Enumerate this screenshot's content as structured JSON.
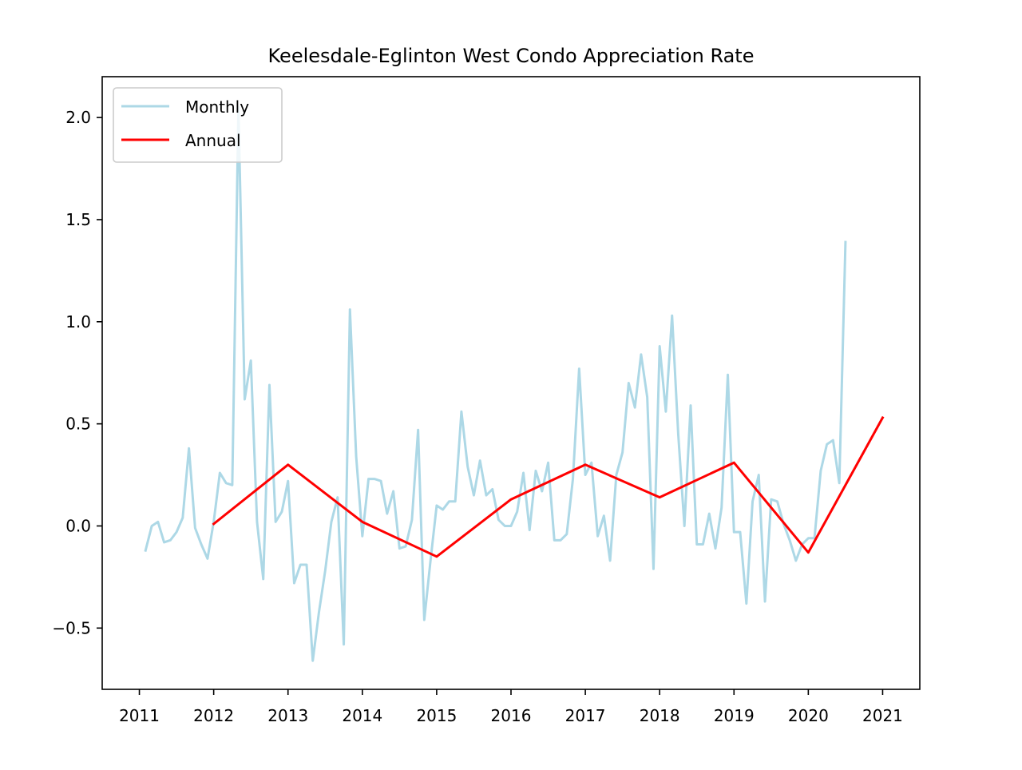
{
  "chart_data": {
    "type": "line",
    "title": "Keelesdale-Eglinton West Condo Appreciation Rate",
    "xlabel": "",
    "ylabel": "",
    "xlim": [
      2010.5,
      2021.5
    ],
    "ylim": [
      -0.8,
      2.2
    ],
    "x_ticks": [
      2011,
      2012,
      2013,
      2014,
      2015,
      2016,
      2017,
      2018,
      2019,
      2020,
      2021
    ],
    "x_tick_labels": [
      "2011",
      "2012",
      "2013",
      "2014",
      "2015",
      "2016",
      "2017",
      "2018",
      "2019",
      "2020",
      "2021"
    ],
    "y_ticks": [
      -0.5,
      0.0,
      0.5,
      1.0,
      1.5,
      2.0
    ],
    "y_tick_labels": [
      "−0.5",
      "0.0",
      "0.5",
      "1.0",
      "1.5",
      "2.0"
    ],
    "grid": false,
    "legend_position": "top-left",
    "series": [
      {
        "name": "Monthly",
        "color": "#add8e6",
        "x": [
          2011.083,
          2011.167,
          2011.25,
          2011.333,
          2011.417,
          2011.5,
          2011.583,
          2011.667,
          2011.75,
          2011.833,
          2011.917,
          2012.0,
          2012.083,
          2012.167,
          2012.25,
          2012.333,
          2012.417,
          2012.5,
          2012.583,
          2012.667,
          2012.75,
          2012.833,
          2012.917,
          2013.0,
          2013.083,
          2013.167,
          2013.25,
          2013.333,
          2013.417,
          2013.5,
          2013.583,
          2013.667,
          2013.75,
          2013.833,
          2013.917,
          2014.0,
          2014.083,
          2014.167,
          2014.25,
          2014.333,
          2014.417,
          2014.5,
          2014.583,
          2014.667,
          2014.75,
          2014.833,
          2014.917,
          2015.0,
          2015.083,
          2015.167,
          2015.25,
          2015.333,
          2015.417,
          2015.5,
          2015.583,
          2015.667,
          2015.75,
          2015.833,
          2015.917,
          2016.0,
          2016.083,
          2016.167,
          2016.25,
          2016.333,
          2016.417,
          2016.5,
          2016.583,
          2016.667,
          2016.75,
          2016.833,
          2016.917,
          2017.0,
          2017.083,
          2017.167,
          2017.25,
          2017.333,
          2017.417,
          2017.5,
          2017.583,
          2017.667,
          2017.75,
          2017.833,
          2017.917,
          2018.0,
          2018.083,
          2018.167,
          2018.25,
          2018.333,
          2018.417,
          2018.5,
          2018.583,
          2018.667,
          2018.75,
          2018.833,
          2018.917,
          2019.0,
          2019.083,
          2019.167,
          2019.25,
          2019.333,
          2019.417,
          2019.5,
          2019.583,
          2019.667,
          2019.75,
          2019.833,
          2019.917,
          2020.0,
          2020.083,
          2020.167,
          2020.25,
          2020.333,
          2020.417,
          2020.5
        ],
        "values": [
          -0.12,
          0.0,
          0.02,
          -0.08,
          -0.07,
          -0.03,
          0.04,
          0.38,
          -0.01,
          -0.09,
          -0.16,
          0.02,
          0.26,
          0.21,
          0.2,
          2.05,
          0.62,
          0.81,
          0.02,
          -0.26,
          0.69,
          0.02,
          0.07,
          0.22,
          -0.28,
          -0.19,
          -0.19,
          -0.66,
          -0.42,
          -0.22,
          0.02,
          0.14,
          -0.58,
          1.06,
          0.34,
          -0.05,
          0.23,
          0.23,
          0.22,
          0.06,
          0.17,
          -0.11,
          -0.1,
          0.03,
          0.47,
          -0.46,
          -0.17,
          0.1,
          0.08,
          0.12,
          0.12,
          0.56,
          0.29,
          0.15,
          0.32,
          0.15,
          0.18,
          0.03,
          0.0,
          0.0,
          0.07,
          0.26,
          -0.02,
          0.27,
          0.17,
          0.31,
          -0.07,
          -0.07,
          -0.04,
          0.23,
          0.77,
          0.25,
          0.31,
          -0.05,
          0.05,
          -0.17,
          0.25,
          0.36,
          0.7,
          0.58,
          0.84,
          0.63,
          -0.21,
          0.88,
          0.56,
          1.03,
          0.45,
          0.0,
          0.59,
          -0.09,
          -0.09,
          0.06,
          -0.11,
          0.09,
          0.74,
          -0.03,
          -0.03,
          -0.38,
          0.12,
          0.25,
          -0.37,
          0.13,
          0.12,
          0.01,
          -0.07,
          -0.17,
          -0.09,
          -0.06,
          -0.06,
          0.27,
          0.4,
          0.42,
          0.21,
          1.39
        ]
      },
      {
        "name": "Annual",
        "color": "#ff0000",
        "x": [
          2012,
          2013,
          2014,
          2015,
          2016,
          2017,
          2018,
          2019,
          2020,
          2021
        ],
        "values": [
          0.01,
          0.3,
          0.02,
          -0.15,
          0.13,
          0.3,
          0.14,
          0.31,
          -0.13,
          0.53
        ]
      }
    ]
  }
}
